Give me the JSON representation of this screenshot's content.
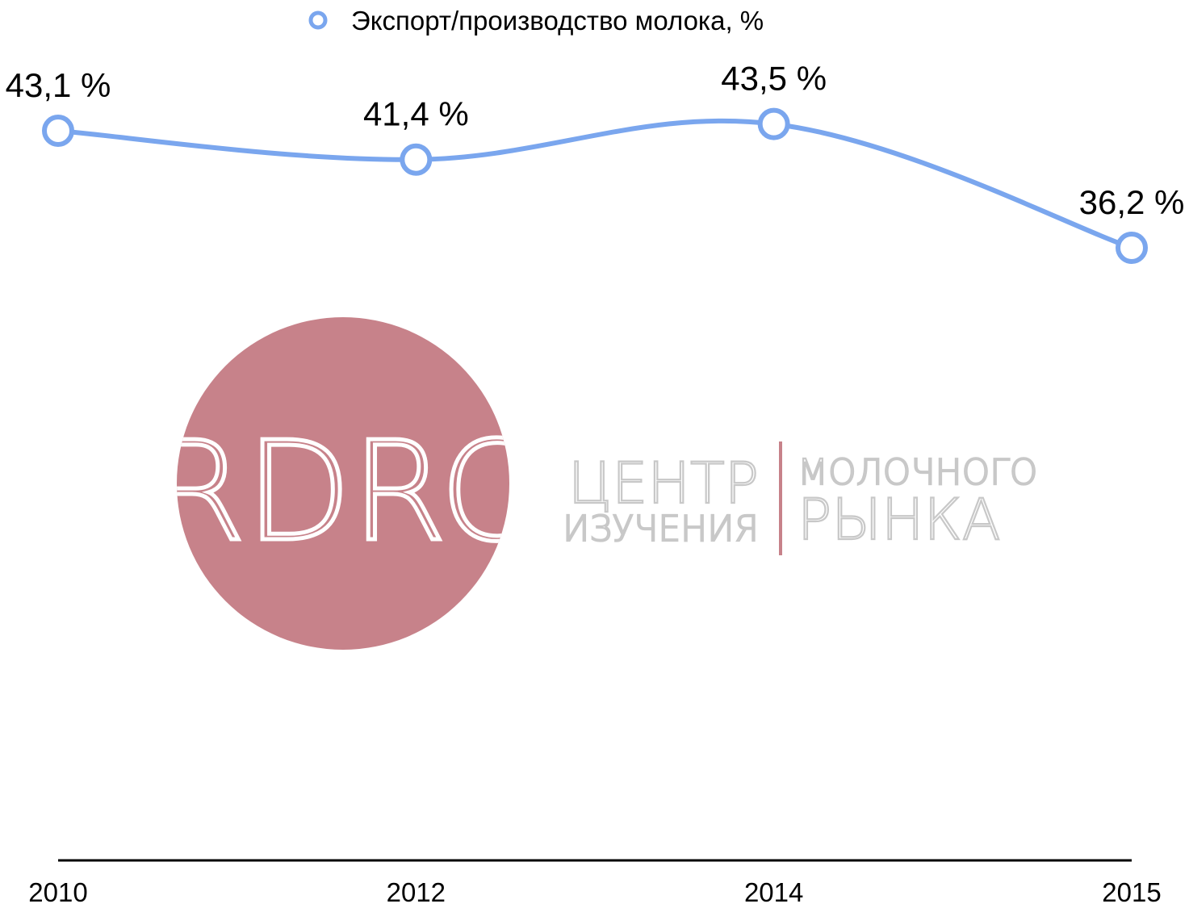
{
  "chart_data": {
    "type": "line",
    "categories": [
      "2010",
      "2012",
      "2014",
      "2015"
    ],
    "series": [
      {
        "name": "Экспорт/производство молока, %",
        "values": [
          43.1,
          41.4,
          43.5,
          36.2
        ],
        "labels": [
          "43,1 %",
          "41,4 %",
          "43,5 %",
          "36,2 %"
        ],
        "color": "#7aa6ee"
      }
    ],
    "legend_position": "top-center",
    "grid": false,
    "y_axis_visible": false
  },
  "watermark": {
    "monogram": "RDRC",
    "line1_left": "ЦЕНТР",
    "line2_left": "ИЗУЧЕНИЯ",
    "line1_right": "МОЛОЧНОГО",
    "line2_right": "РЫНКА",
    "circle_color": "#c7828a",
    "text_color": "#c8c8c8"
  },
  "colors": {
    "axis": "#000000",
    "marker_fill": "#ffffff"
  }
}
